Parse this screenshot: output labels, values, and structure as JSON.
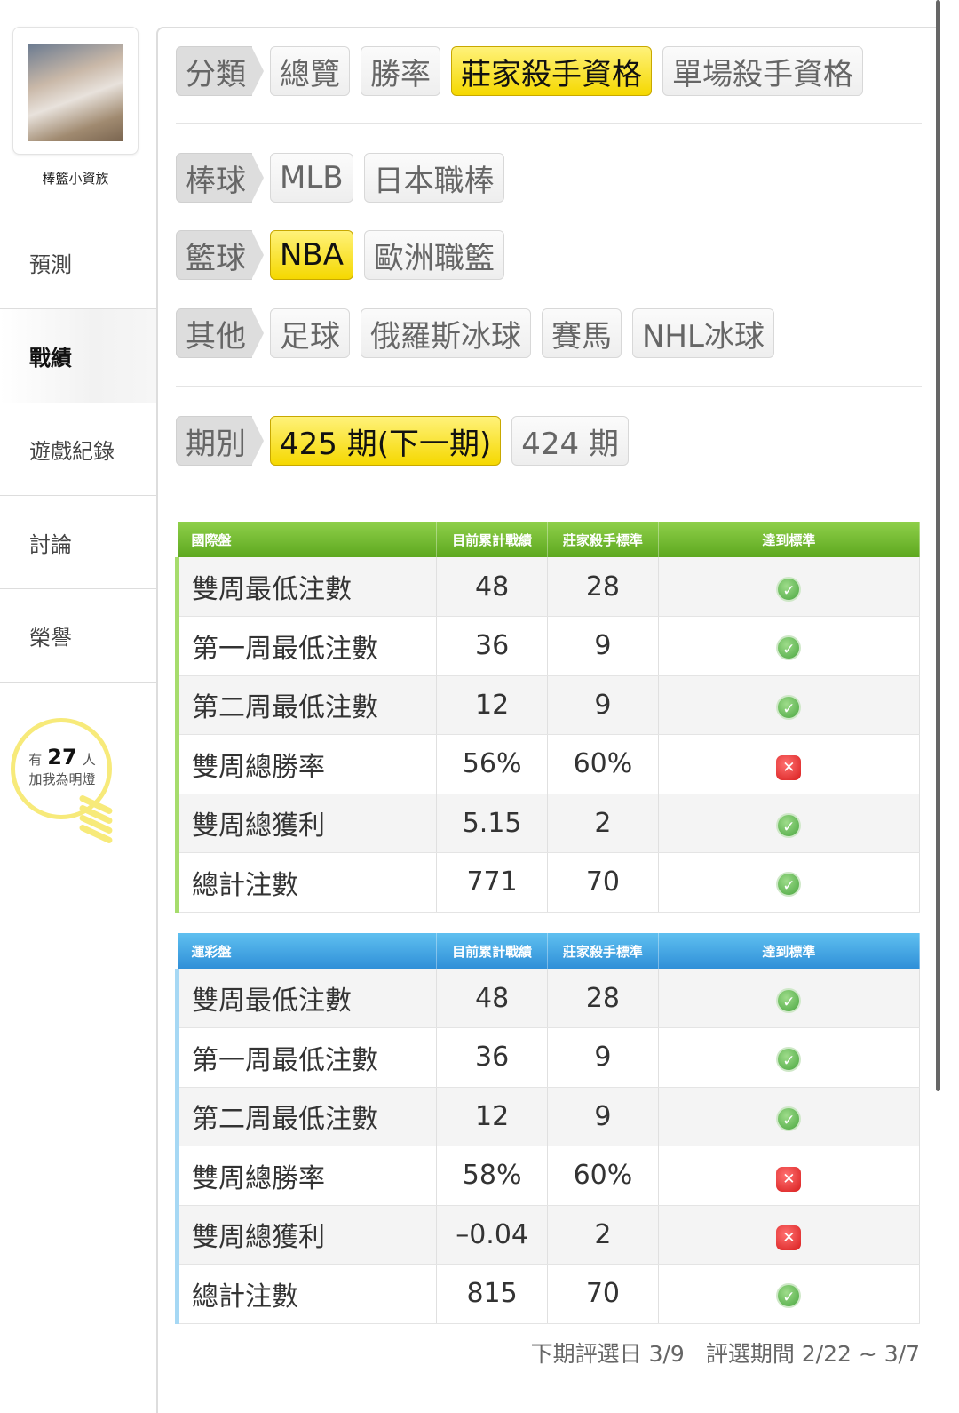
{
  "sidebar": {
    "username": "棒籃小資族",
    "menu": [
      {
        "label": "預測"
      },
      {
        "label": "戰績",
        "active": true
      },
      {
        "label": "遊戲紀錄"
      },
      {
        "label": "討論"
      },
      {
        "label": "榮譽"
      }
    ],
    "fans": {
      "prefix": "有",
      "count": "27",
      "suffix": "人",
      "caption": "加我為明燈"
    }
  },
  "filters": {
    "category": {
      "label": "分類",
      "options": [
        "總覽",
        "勝率",
        "莊家殺手資格",
        "單場殺手資格"
      ],
      "selected": "莊家殺手資格"
    },
    "baseball": {
      "label": "棒球",
      "options": [
        "MLB",
        "日本職棒"
      ]
    },
    "basketball": {
      "label": "籃球",
      "options": [
        "NBA",
        "歐洲職籃"
      ],
      "selected": "NBA"
    },
    "other": {
      "label": "其他",
      "options": [
        "足球",
        "俄羅斯冰球",
        "賽馬",
        "NHL冰球"
      ]
    },
    "period": {
      "label": "期別",
      "options": [
        "425 期(下一期)",
        "424 期"
      ],
      "selected": "425 期(下一期)"
    }
  },
  "tables": [
    {
      "title": "國際盤",
      "columns": [
        "目前累計戰績",
        "莊家殺手標準",
        "達到標準"
      ],
      "accent": "#6ab42a",
      "rows": [
        [
          "雙周最低注數",
          "48",
          "28",
          true
        ],
        [
          "第一周最低注數",
          "36",
          "9",
          true
        ],
        [
          "第二周最低注數",
          "12",
          "9",
          true
        ],
        [
          "雙周總勝率",
          "56%",
          "60%",
          false
        ],
        [
          "雙周總獲利",
          "5.15",
          "2",
          true
        ],
        [
          "總計注數",
          "771",
          "70",
          true
        ]
      ]
    },
    {
      "title": "運彩盤",
      "columns": [
        "目前累計戰績",
        "莊家殺手標準",
        "達到標準"
      ],
      "accent": "#3a9ae0",
      "rows": [
        [
          "雙周最低注數",
          "48",
          "28",
          true
        ],
        [
          "第一周最低注數",
          "36",
          "9",
          true
        ],
        [
          "第二周最低注數",
          "12",
          "9",
          true
        ],
        [
          "雙周總勝率",
          "58%",
          "60%",
          false
        ],
        [
          "雙周總獲利",
          "–0.04",
          "2",
          false
        ],
        [
          "總計注數",
          "815",
          "70",
          true
        ]
      ]
    }
  ],
  "footer": {
    "next_eval": "下期評選日 3/9",
    "period": "評選期間 2/22 ~ 3/7"
  }
}
